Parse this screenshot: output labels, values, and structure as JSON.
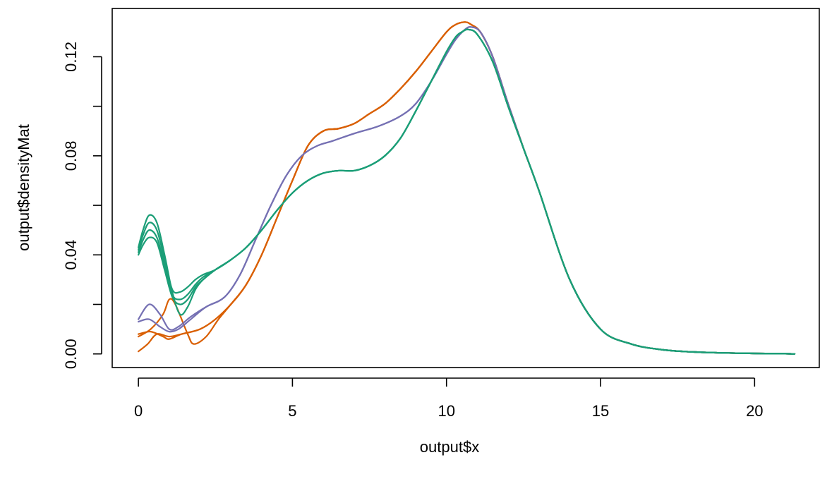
{
  "chart_data": {
    "type": "line",
    "title": "",
    "xlabel": "output$x",
    "ylabel": "output$densityMat",
    "xlim": [
      -0.85,
      22.1
    ],
    "ylim": [
      -0.0055,
      0.1395
    ],
    "x_ticks": [
      0,
      5,
      10,
      15,
      20
    ],
    "x_tick_labels": [
      "0",
      "5",
      "10",
      "15",
      "20"
    ],
    "y_ticks": [
      0.0,
      0.02,
      0.04,
      0.06,
      0.08,
      0.1,
      0.12
    ],
    "y_tick_labels": [
      "0.00",
      "",
      "0.04",
      "",
      "0.08",
      "",
      "0.12"
    ],
    "grid": false,
    "legend": "none",
    "tail": {
      "x": [
        13,
        14,
        15,
        16,
        17,
        18,
        19,
        20,
        21,
        21.3
      ],
      "y": [
        0.066,
        0.03,
        0.01,
        0.004,
        0.0017,
        0.0008,
        0.0004,
        0.0002,
        0.0001,
        0.0
      ]
    },
    "series": [
      {
        "color": "#1B9E77",
        "x": [
          0,
          0.15,
          0.35,
          0.6,
          0.85,
          1.1,
          1.35,
          1.6,
          1.85,
          2.1,
          2.5,
          3.0,
          3.5,
          4.0,
          4.5,
          5.0,
          5.5,
          6.0,
          6.5,
          7.0,
          7.5,
          8.0,
          8.5,
          9.0,
          9.5,
          10.0,
          10.3,
          10.5,
          10.7,
          11.0,
          11.5,
          12.0,
          12.5
        ],
        "y": [
          0.042,
          0.048,
          0.053,
          0.05,
          0.038,
          0.026,
          0.025,
          0.027,
          0.03,
          0.032,
          0.034,
          0.038,
          0.043,
          0.05,
          0.058,
          0.065,
          0.07,
          0.073,
          0.074,
          0.074,
          0.076,
          0.08,
          0.087,
          0.098,
          0.11,
          0.122,
          0.128,
          0.13,
          0.131,
          0.129,
          0.118,
          0.1,
          0.083
        ]
      },
      {
        "color": "#1B9E77",
        "x": [
          0,
          0.15,
          0.35,
          0.6,
          0.85,
          1.1,
          1.35,
          1.6,
          1.85,
          2.1,
          2.5,
          3.0,
          3.5,
          4.0,
          4.5,
          5.0,
          5.5,
          6.0,
          6.5,
          7.0,
          7.5,
          8.0,
          8.5,
          9.0,
          9.5,
          10.0,
          10.3,
          10.5,
          10.7,
          11.0,
          11.5,
          12.0,
          12.5
        ],
        "y": [
          0.041,
          0.046,
          0.05,
          0.047,
          0.036,
          0.024,
          0.022,
          0.024,
          0.028,
          0.031,
          0.034,
          0.038,
          0.043,
          0.05,
          0.058,
          0.065,
          0.07,
          0.073,
          0.074,
          0.074,
          0.076,
          0.08,
          0.087,
          0.098,
          0.11,
          0.122,
          0.128,
          0.13,
          0.131,
          0.129,
          0.118,
          0.1,
          0.083
        ]
      },
      {
        "color": "#1B9E77",
        "x": [
          0,
          0.15,
          0.35,
          0.6,
          0.85,
          1.1,
          1.35,
          1.6,
          1.85,
          2.1,
          2.5,
          3.0,
          3.5,
          4.0,
          4.5,
          5.0,
          5.5,
          6.0,
          6.5,
          7.0,
          7.5,
          8.0,
          8.5,
          9.0,
          9.5,
          10.0,
          10.3,
          10.5,
          10.7,
          11.0,
          11.5,
          12.0,
          12.5
        ],
        "y": [
          0.04,
          0.044,
          0.047,
          0.045,
          0.034,
          0.023,
          0.02,
          0.022,
          0.027,
          0.03,
          0.034,
          0.038,
          0.043,
          0.05,
          0.058,
          0.065,
          0.07,
          0.073,
          0.074,
          0.074,
          0.076,
          0.08,
          0.087,
          0.098,
          0.11,
          0.122,
          0.128,
          0.13,
          0.131,
          0.129,
          0.118,
          0.1,
          0.083
        ]
      },
      {
        "color": "#1B9E77",
        "x": [
          0,
          0.15,
          0.35,
          0.6,
          0.85,
          1.1,
          1.35,
          1.6,
          1.85,
          2.1,
          2.5,
          3.0,
          3.5,
          4.0,
          4.5,
          5.0,
          5.5,
          6.0,
          6.5,
          7.0,
          7.5,
          8.0,
          8.5,
          9.0,
          9.5,
          10.0,
          10.3,
          10.5,
          10.7,
          11.0,
          11.5,
          12.0,
          12.5
        ],
        "y": [
          0.043,
          0.05,
          0.056,
          0.053,
          0.04,
          0.025,
          0.016,
          0.019,
          0.026,
          0.03,
          0.034,
          0.038,
          0.043,
          0.05,
          0.058,
          0.065,
          0.07,
          0.073,
          0.074,
          0.074,
          0.076,
          0.08,
          0.087,
          0.098,
          0.11,
          0.122,
          0.128,
          0.13,
          0.131,
          0.129,
          0.118,
          0.1,
          0.083
        ]
      },
      {
        "color": "#7570B3",
        "x": [
          0,
          0.35,
          0.7,
          1.0,
          1.3,
          1.7,
          2.2,
          2.8,
          3.3,
          3.8,
          4.3,
          4.8,
          5.3,
          5.8,
          6.3,
          7.0,
          7.8,
          8.5,
          9.0,
          9.5,
          10.0,
          10.3,
          10.6,
          10.8,
          11.1,
          11.5,
          12.0,
          12.5
        ],
        "y": [
          0.014,
          0.02,
          0.016,
          0.01,
          0.011,
          0.015,
          0.019,
          0.023,
          0.032,
          0.046,
          0.06,
          0.072,
          0.08,
          0.084,
          0.086,
          0.089,
          0.092,
          0.096,
          0.101,
          0.11,
          0.121,
          0.127,
          0.131,
          0.132,
          0.13,
          0.12,
          0.101,
          0.083
        ]
      },
      {
        "color": "#7570B3",
        "x": [
          0,
          0.35,
          0.7,
          1.0,
          1.3,
          1.7,
          2.2,
          2.8,
          3.3,
          3.8,
          4.3,
          4.8,
          5.3,
          5.8,
          6.3,
          7.0,
          7.8,
          8.5,
          9.0,
          9.5,
          10.0,
          10.3,
          10.6,
          10.8,
          11.1,
          11.5,
          12.0,
          12.5
        ],
        "y": [
          0.013,
          0.014,
          0.011,
          0.009,
          0.01,
          0.014,
          0.019,
          0.023,
          0.032,
          0.046,
          0.06,
          0.072,
          0.08,
          0.084,
          0.086,
          0.089,
          0.092,
          0.096,
          0.101,
          0.11,
          0.121,
          0.127,
          0.131,
          0.132,
          0.13,
          0.12,
          0.101,
          0.083
        ]
      },
      {
        "color": "#D95F02",
        "x": [
          0,
          0.4,
          0.8,
          1.0,
          1.2,
          1.6,
          1.8,
          2.2,
          2.6,
          3.0,
          3.5,
          4.0,
          4.5,
          5.0,
          5.5,
          6.0,
          6.5,
          7.0,
          7.5,
          8.0,
          8.5,
          9.0,
          9.5,
          10.0,
          10.3,
          10.6,
          10.8,
          11.1,
          11.5,
          12.0,
          12.5
        ],
        "y": [
          0.007,
          0.01,
          0.016,
          0.022,
          0.02,
          0.008,
          0.004,
          0.007,
          0.014,
          0.02,
          0.028,
          0.04,
          0.055,
          0.07,
          0.084,
          0.09,
          0.091,
          0.093,
          0.097,
          0.101,
          0.107,
          0.114,
          0.122,
          0.13,
          0.133,
          0.134,
          0.133,
          0.13,
          0.12,
          0.101,
          0.083
        ]
      },
      {
        "color": "#D95F02",
        "x": [
          0,
          0.4,
          0.8,
          1.0,
          1.4,
          2.0,
          2.5,
          3.0,
          3.5,
          4.0,
          4.5,
          5.0,
          5.5,
          6.0,
          6.5,
          7.0,
          7.5,
          8.0,
          8.5,
          9.0,
          9.5,
          10.0,
          10.3,
          10.6,
          10.8,
          11.1,
          11.5,
          12.0,
          12.5
        ],
        "y": [
          0.008,
          0.009,
          0.007,
          0.006,
          0.008,
          0.01,
          0.014,
          0.02,
          0.028,
          0.04,
          0.055,
          0.07,
          0.084,
          0.09,
          0.091,
          0.093,
          0.097,
          0.101,
          0.107,
          0.114,
          0.122,
          0.13,
          0.133,
          0.134,
          0.133,
          0.13,
          0.12,
          0.101,
          0.083
        ]
      },
      {
        "color": "#D95F02",
        "x": [
          0,
          0.3,
          0.6,
          1.0,
          1.4,
          2.0,
          2.5,
          3.0,
          3.5,
          4.0,
          4.5,
          5.0,
          5.5,
          6.0,
          6.5,
          7.0,
          7.5,
          8.0,
          8.5,
          9.0,
          9.5,
          10.0,
          10.3,
          10.6,
          10.8,
          11.1,
          11.5,
          12.0,
          12.5
        ],
        "y": [
          0.001,
          0.004,
          0.008,
          0.007,
          0.008,
          0.01,
          0.014,
          0.02,
          0.028,
          0.04,
          0.055,
          0.07,
          0.084,
          0.09,
          0.091,
          0.093,
          0.097,
          0.101,
          0.107,
          0.114,
          0.122,
          0.13,
          0.133,
          0.134,
          0.133,
          0.13,
          0.12,
          0.101,
          0.083
        ]
      }
    ]
  }
}
